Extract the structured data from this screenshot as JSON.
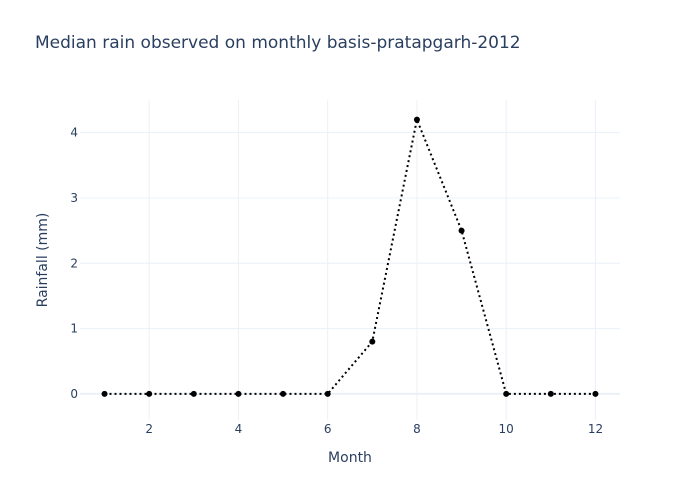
{
  "chart_data": {
    "type": "line",
    "title": "Median rain observed on monthly basis-pratapgarh-2012",
    "xlabel": "Month",
    "ylabel": "Rainfall (mm)",
    "x": [
      1,
      2,
      3,
      4,
      5,
      6,
      7,
      8,
      9,
      10,
      11,
      12
    ],
    "series": [
      {
        "values": [
          0,
          0,
          0,
          0,
          0,
          0,
          0.8,
          4.2,
          2.5,
          0,
          0,
          0
        ]
      }
    ],
    "xticks": [
      2,
      4,
      6,
      8,
      10,
      12
    ],
    "yticks": [
      0,
      1,
      2,
      3,
      4
    ],
    "xlim": [
      0.45,
      12.55
    ],
    "ylim": [
      -0.4,
      4.5
    ],
    "grid": true,
    "line_style": "dotted",
    "line_color": "#000000",
    "marker": "circle"
  }
}
